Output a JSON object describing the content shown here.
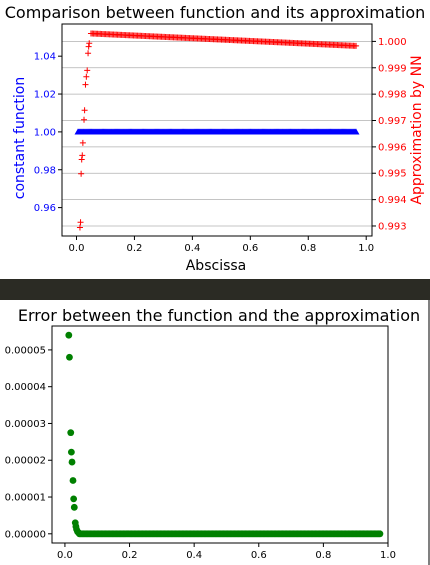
{
  "colors": {
    "blue": "#0000ff",
    "red": "#ff0000",
    "green": "#008000",
    "separator": "#2b2b24",
    "grid": "#b0b0b0"
  },
  "chart_data": [
    {
      "type": "scatter",
      "title": "Comparison between function and its approximation",
      "xlabel": "Abscissa",
      "ylabel": "constant function",
      "y2label": "Approximation by NN",
      "xlim": [
        -0.05,
        1.02
      ],
      "ylim": [
        0.945,
        1.057
      ],
      "y2lim": [
        0.99262,
        1.00066
      ],
      "x_ticks": [
        0.0,
        0.2,
        0.4,
        0.6,
        0.8,
        1.0
      ],
      "x_tick_labels": [
        "0.0",
        "0.2",
        "0.4",
        "0.6",
        "0.8",
        "1.0"
      ],
      "y_ticks": [
        0.96,
        0.98,
        1.0,
        1.02,
        1.04
      ],
      "y_tick_labels": [
        "0.96",
        "0.98",
        "1.00",
        "1.02",
        "1.04"
      ],
      "y2_ticks": [
        0.993,
        0.994,
        0.995,
        0.996,
        0.997,
        0.998,
        0.999,
        1.0
      ],
      "y2_tick_labels": [
        "0.993",
        "0.994",
        "0.995",
        "0.996",
        "0.997",
        "0.998",
        "0.999",
        "1.000"
      ],
      "grid": "horizontal lines (secondary axis)",
      "series": [
        {
          "axis": "left",
          "marker": "triangle",
          "color": "#0000ff",
          "x_range": [
            0.005,
            0.965
          ],
          "count": 300,
          "y": 1.0
        },
        {
          "axis": "right",
          "marker": "plus",
          "color": "#ff0000",
          "points": [
            [
              0.012,
              0.99294
            ],
            [
              0.014,
              0.99314
            ],
            [
              0.016,
              0.99498
            ],
            [
              0.018,
              0.99552
            ],
            [
              0.02,
              0.99568
            ],
            [
              0.022,
              0.99615
            ],
            [
              0.026,
              0.99703
            ],
            [
              0.028,
              0.99739
            ],
            [
              0.031,
              0.99836
            ],
            [
              0.034,
              0.99866
            ],
            [
              0.037,
              0.9989
            ],
            [
              0.04,
              0.99955
            ],
            [
              0.042,
              0.9998
            ],
            [
              0.044,
              0.99993
            ]
          ],
          "line_x_range": [
            0.05,
            0.965
          ],
          "line_y_range": [
            1.0003,
            0.99983
          ],
          "line_count": 200
        }
      ]
    },
    {
      "type": "scatter",
      "title": "Error between the function and the approximation",
      "xlabel": "",
      "ylabel": "",
      "xlim": [
        -0.04,
        1.0
      ],
      "ylim": [
        -2.5e-06,
        5.65e-05
      ],
      "x_ticks": [
        0.0,
        0.2,
        0.4,
        0.6,
        0.8,
        1.0
      ],
      "x_tick_labels": [
        "0.0",
        "0.2",
        "0.4",
        "0.6",
        "0.8",
        "1.0"
      ],
      "y_ticks": [
        0.0,
        1e-05,
        2e-05,
        3e-05,
        4e-05,
        5e-05
      ],
      "y_tick_labels": [
        "0.00000",
        "0.00001",
        "0.00002",
        "0.00003",
        "0.00004",
        "0.00005"
      ],
      "grid": "off",
      "series": [
        {
          "marker": "circle",
          "color": "#008000",
          "points": [
            [
              0.012,
              5.4e-05
            ],
            [
              0.014,
              4.8e-05
            ],
            [
              0.018,
              2.75e-05
            ],
            [
              0.02,
              2.22e-05
            ],
            [
              0.022,
              1.95e-05
            ],
            [
              0.025,
              1.45e-05
            ],
            [
              0.027,
              9.5e-06
            ],
            [
              0.029,
              7.2e-06
            ],
            [
              0.032,
              3e-06
            ],
            [
              0.034,
              2e-06
            ],
            [
              0.036,
              1.2e-06
            ],
            [
              0.039,
              6e-07
            ],
            [
              0.042,
              3e-07
            ]
          ],
          "flat_x_range": [
            0.045,
            0.975
          ],
          "flat_y": 0.0,
          "flat_count": 220
        }
      ]
    }
  ]
}
